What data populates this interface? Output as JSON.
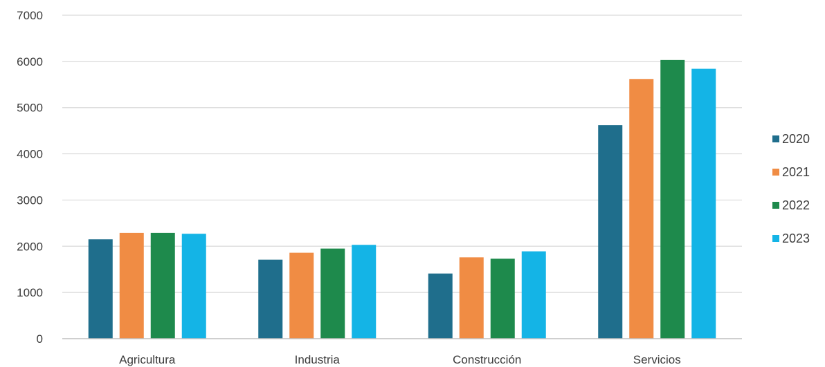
{
  "chart_data": {
    "type": "bar",
    "categories": [
      "Agricultura",
      "Industria",
      "Construcción",
      "Servicios"
    ],
    "series": [
      {
        "name": "2020",
        "color": "#1f6e8c",
        "values": [
          2150,
          1710,
          1410,
          4620
        ]
      },
      {
        "name": "2021",
        "color": "#f08c44",
        "values": [
          2290,
          1860,
          1760,
          5620
        ]
      },
      {
        "name": "2022",
        "color": "#1e8a4c",
        "values": [
          2290,
          1950,
          1730,
          6030
        ]
      },
      {
        "name": "2023",
        "color": "#14b4e6",
        "values": [
          2270,
          2030,
          1890,
          5840
        ]
      }
    ],
    "ylim": [
      0,
      7000
    ],
    "yticks": [
      0,
      1000,
      2000,
      3000,
      4000,
      5000,
      6000,
      7000
    ],
    "grid": true,
    "legend_position": "right",
    "title": "",
    "xlabel": "",
    "ylabel": ""
  }
}
